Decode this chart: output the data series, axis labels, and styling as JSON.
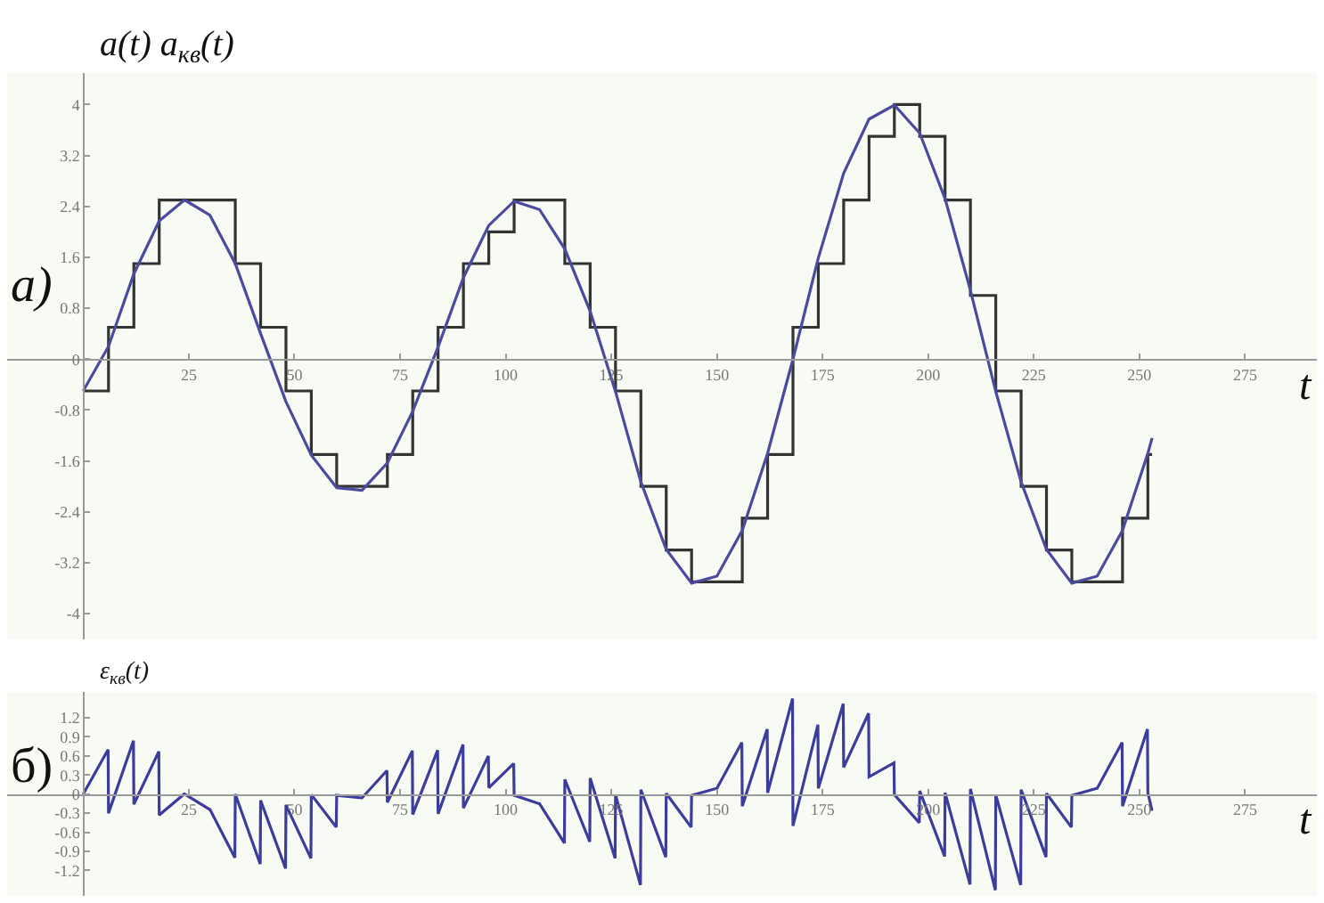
{
  "chart_data": [
    {
      "type": "line",
      "ylabel": "a(t) a$_{кв}$(t)",
      "xlabel": "t",
      "annotations": [
        "а)"
      ],
      "xlim": [
        -18,
        292
      ],
      "xticks": [
        25,
        50,
        75,
        100,
        125,
        150,
        175,
        200,
        225,
        250,
        275
      ],
      "ylim": [
        -4.4,
        4.5
      ],
      "yticks": [
        -4,
        -3.2,
        -2.4,
        -1.6,
        -0.8,
        0,
        0.8,
        1.6,
        2.4,
        3.2,
        4
      ],
      "line_style": "solid",
      "series": [
        {
          "type": "step",
          "color": "#333333",
          "x": [
            0,
            6,
            12,
            18,
            24,
            30,
            36,
            42,
            48,
            54,
            60,
            66,
            72,
            78,
            84,
            90,
            96,
            102,
            108,
            114,
            120,
            126,
            132,
            138,
            144,
            150,
            156,
            162,
            168,
            174,
            180,
            186,
            192,
            198,
            204,
            210,
            216,
            222,
            228,
            234,
            240,
            246,
            252,
            253
          ],
          "values": [
            -0.5,
            0.5,
            1.5,
            2.5,
            2.5,
            2.5,
            1.5,
            0.5,
            -0.5,
            -1.5,
            -2,
            -2,
            -1.5,
            -0.5,
            0.5,
            1.5,
            2,
            2.5,
            2.5,
            1.5,
            0.5,
            -0.5,
            -2,
            -3,
            -3.5,
            -3.5,
            -2.5,
            -1.5,
            0.5,
            1.5,
            2.5,
            3.5,
            4,
            3.5,
            2.5,
            1,
            -0.5,
            -2,
            -3,
            -3.5,
            -3.5,
            -2.5,
            -1.5,
            -1.5
          ]
        },
        {
          "color": "#4a4a9e",
          "x": [
            0,
            6,
            12,
            18,
            24,
            30,
            36,
            42,
            48,
            54,
            60,
            66,
            72,
            78,
            84,
            90,
            96,
            102,
            108,
            114,
            120,
            126,
            132,
            138,
            144,
            150,
            156,
            162,
            168,
            174,
            180,
            186,
            192,
            198,
            204,
            210,
            216,
            222,
            228,
            234,
            240,
            246,
            252,
            253
          ],
          "values": [
            -0.5,
            0.2,
            1.34,
            2.17,
            2.5,
            2.26,
            1.5,
            0.4,
            -0.67,
            -1.51,
            -2.02,
            -2.06,
            -1.63,
            -0.82,
            0.19,
            1.28,
            2.1,
            2.48,
            2.35,
            1.73,
            0.75,
            -0.51,
            -1.93,
            -2.99,
            -3.52,
            -3.41,
            -2.69,
            -1.48,
            0,
            1.59,
            2.92,
            3.77,
            3.99,
            3.55,
            2.52,
            1.08,
            -0.51,
            -1.93,
            -2.99,
            -3.52,
            -3.41,
            -2.69,
            -1.48,
            -1.24
          ]
        }
      ]
    },
    {
      "type": "line",
      "ylabel": "ε$_{кв}$(t)",
      "xlabel": "t",
      "annotations": [
        "б)"
      ],
      "xlim": [
        -18,
        292
      ],
      "xticks": [
        25,
        50,
        75,
        100,
        125,
        150,
        175,
        200,
        225,
        250,
        275
      ],
      "ylim": [
        -1.6,
        1.6
      ],
      "yticks": [
        -1.2,
        -0.9,
        -0.6,
        -0.3,
        0,
        0.3,
        0.6,
        0.9,
        1.2
      ],
      "line_style": "solid",
      "series": [
        {
          "color": "#3c3c9c",
          "x": [
            0,
            5.9,
            6,
            11.9,
            12,
            17.9,
            18,
            23.9,
            24,
            29.9,
            30,
            35.9,
            36,
            41.9,
            42,
            47.9,
            48,
            53.9,
            54,
            59.9,
            60,
            65.9,
            66,
            71.9,
            72,
            77.9,
            78,
            83.9,
            84,
            89.9,
            90,
            95.9,
            96,
            101.9,
            102,
            107.9,
            108,
            113.9,
            114,
            119.9,
            120,
            125.9,
            126,
            131.9,
            132,
            137.9,
            138,
            143.9,
            144,
            149.9,
            150,
            155.9,
            156,
            161.9,
            162,
            167.9,
            168,
            173.9,
            174,
            179.9,
            180,
            185.9,
            186,
            191.9,
            192,
            197.9,
            198,
            203.9,
            204,
            209.9,
            210,
            215.9,
            216,
            221.9,
            222,
            227.9,
            228,
            233.9,
            234,
            239.9,
            240,
            245.9,
            246,
            251.9,
            252,
            253
          ],
          "values": [
            0,
            0.7,
            -0.3,
            0.84,
            -0.16,
            0.67,
            -0.33,
            0,
            0,
            -0.24,
            -0.24,
            -1.0,
            0,
            -1.1,
            -0.1,
            -1.17,
            -0.17,
            -1.01,
            -0.01,
            -0.52,
            -0.02,
            -0.06,
            -0.06,
            0.37,
            -0.13,
            0.68,
            -0.32,
            0.69,
            -0.31,
            0.78,
            -0.22,
            0.6,
            0.1,
            0.48,
            -0.02,
            -0.15,
            -0.15,
            -0.77,
            0.23,
            -0.75,
            0.25,
            -1.01,
            -0.01,
            -1.43,
            0.07,
            -0.99,
            0.01,
            -0.52,
            -0.02,
            0.09,
            0.09,
            0.81,
            -0.19,
            1.02,
            0.02,
            1.5,
            -0.5,
            1.09,
            0.09,
            1.42,
            0.42,
            1.27,
            0.27,
            0.49,
            -0.01,
            -0.45,
            0.05,
            -0.98,
            0.02,
            -1.42,
            0.08,
            -1.51,
            -0.01,
            -1.43,
            0.07,
            -0.99,
            0.01,
            -0.52,
            -0.02,
            0.09,
            0.09,
            0.81,
            -0.19,
            1.02,
            0.02,
            -0.26
          ]
        }
      ]
    }
  ]
}
